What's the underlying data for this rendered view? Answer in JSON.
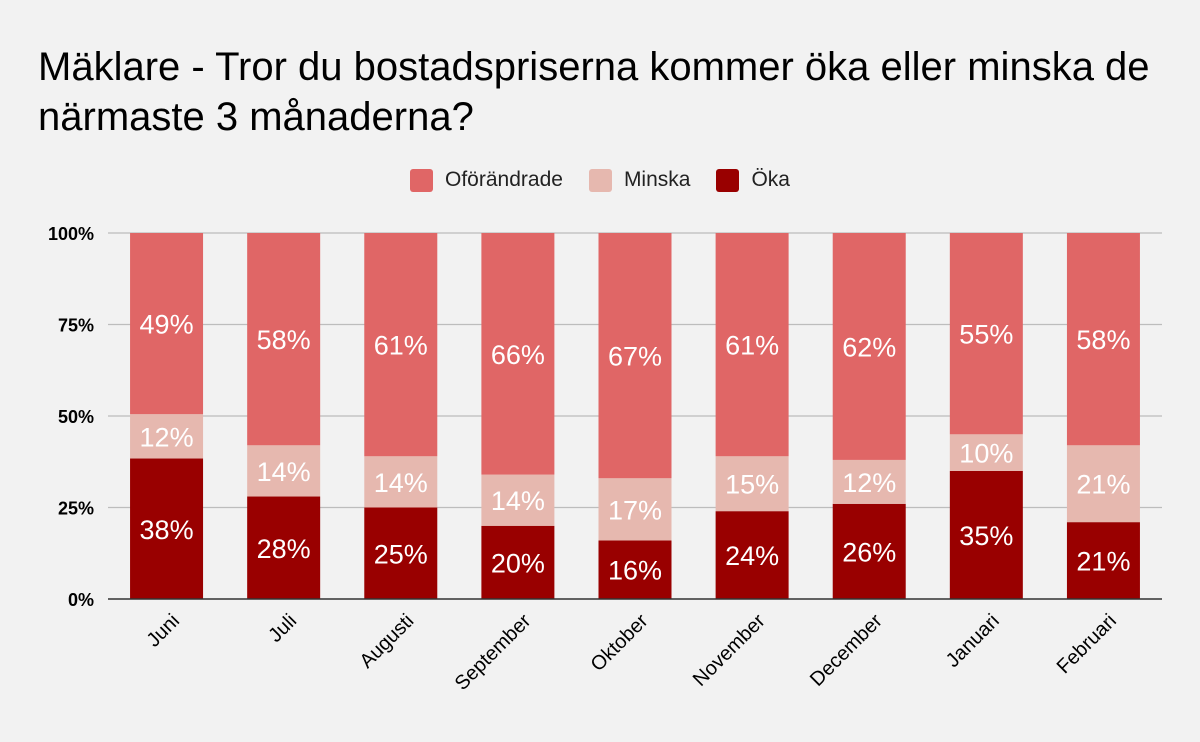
{
  "chart_data": {
    "type": "bar",
    "stacked": true,
    "title": "Mäklare - Tror du bostadspriserna kommer öka eller minska de närmaste 3 månaderna?",
    "categories": [
      "Juni",
      "Juli",
      "Augusti",
      "September",
      "Oktober",
      "November",
      "December",
      "Januari",
      "Februari"
    ],
    "series": [
      {
        "name": "Öka",
        "color": "#990000",
        "values": [
          38,
          28,
          25,
          20,
          16,
          24,
          26,
          35,
          21
        ]
      },
      {
        "name": "Minska",
        "color": "#e6b8af",
        "values": [
          12,
          14,
          14,
          14,
          17,
          15,
          12,
          10,
          21
        ]
      },
      {
        "name": "Oförändrade",
        "color": "#e06666",
        "values": [
          49,
          58,
          61,
          66,
          67,
          61,
          62,
          55,
          58
        ]
      }
    ],
    "legend_order": [
      "Oförändrade",
      "Minska",
      "Öka"
    ],
    "legend_position": "top",
    "y_ticks": [
      "0%",
      "25%",
      "50%",
      "75%",
      "100%"
    ],
    "ylim": [
      0,
      100
    ],
    "value_suffix": "%",
    "grid": true,
    "xlabel": "",
    "ylabel": ""
  }
}
